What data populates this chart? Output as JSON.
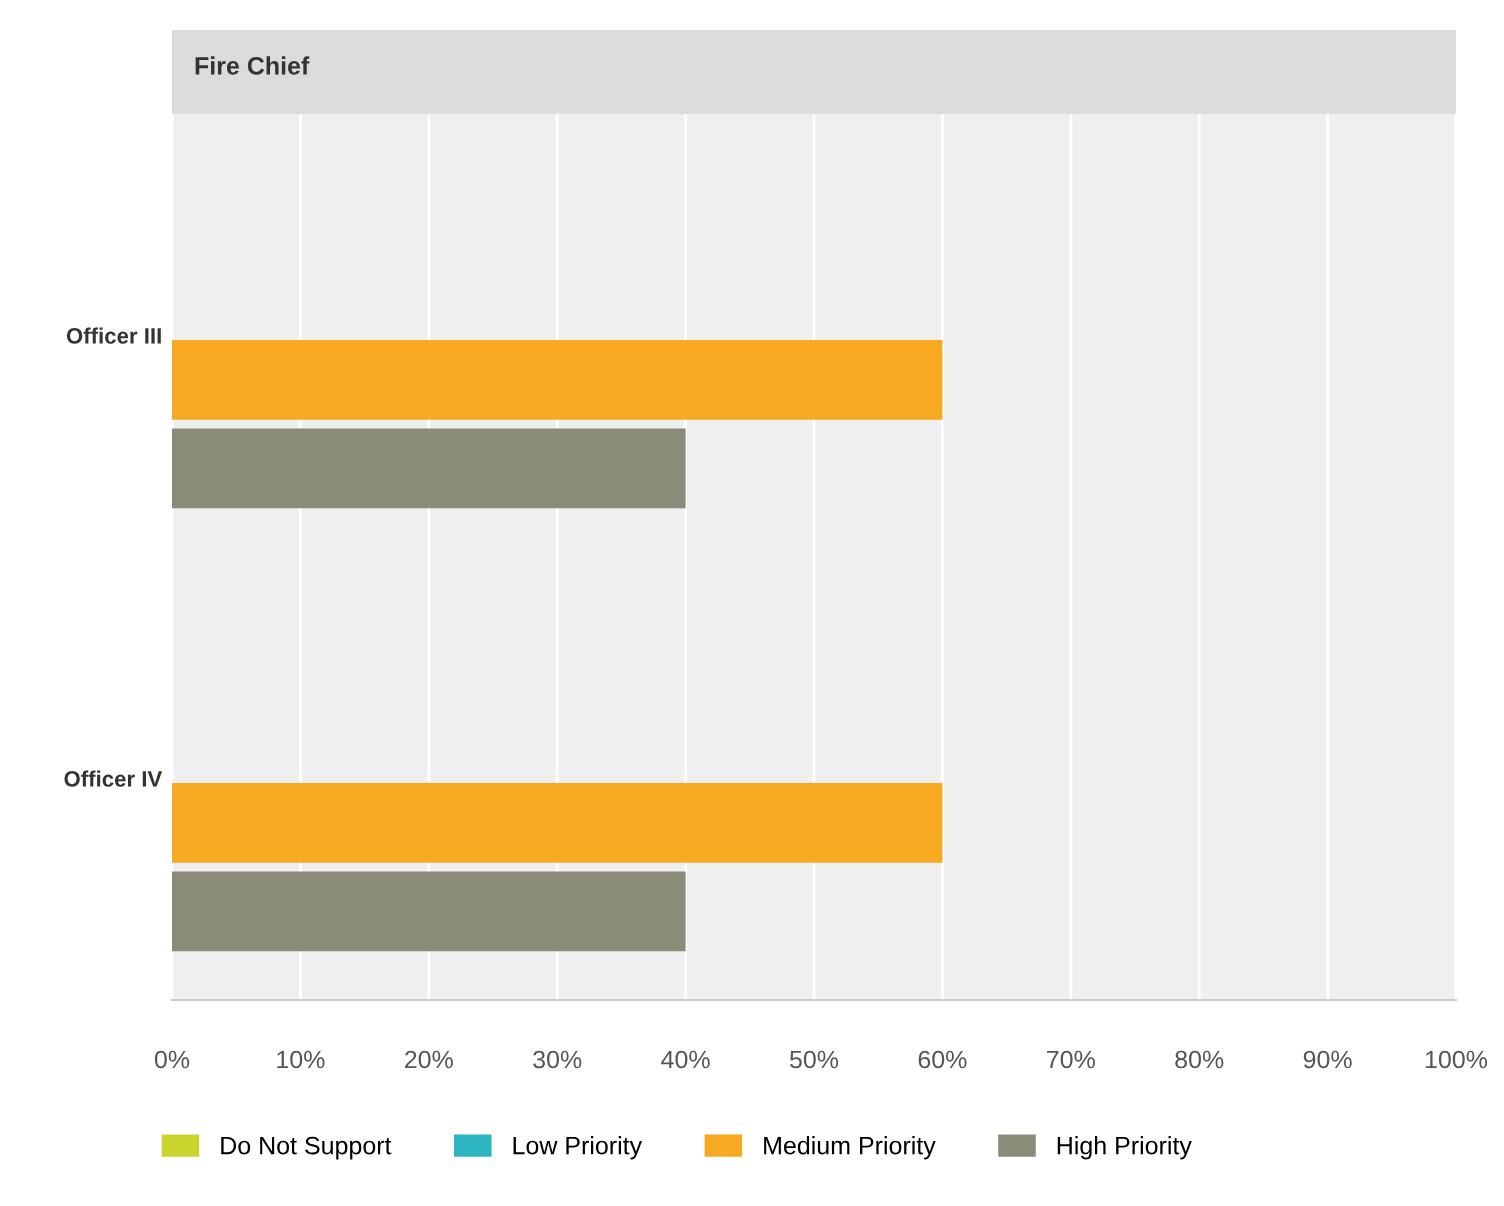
{
  "chart_data": {
    "type": "bar",
    "title": "Fire Chief",
    "orientation": "horizontal",
    "categories": [
      "Officer III",
      "Officer IV"
    ],
    "series": [
      {
        "name": "Do Not Support",
        "color": "#c9d52c",
        "values": [
          0,
          0
        ]
      },
      {
        "name": "Low Priority",
        "color": "#2db6c1",
        "values": [
          0,
          0
        ]
      },
      {
        "name": "Medium Priority",
        "color": "#f7a921",
        "values": [
          60,
          60
        ]
      },
      {
        "name": "High Priority",
        "color": "#8a8b79",
        "values": [
          40,
          40
        ]
      }
    ],
    "xlim": [
      0,
      100
    ],
    "xticks": [
      {
        "value": 0,
        "label": "0%"
      },
      {
        "value": 10,
        "label": "10%"
      },
      {
        "value": 20,
        "label": "20%"
      },
      {
        "value": 30,
        "label": "30%"
      },
      {
        "value": 40,
        "label": "40%"
      },
      {
        "value": 50,
        "label": "50%"
      },
      {
        "value": 60,
        "label": "60%"
      },
      {
        "value": 70,
        "label": "70%"
      },
      {
        "value": 80,
        "label": "80%"
      },
      {
        "value": 90,
        "label": "90%"
      },
      {
        "value": 100,
        "label": "100%"
      }
    ],
    "grid": "x",
    "legend": "bottom"
  }
}
